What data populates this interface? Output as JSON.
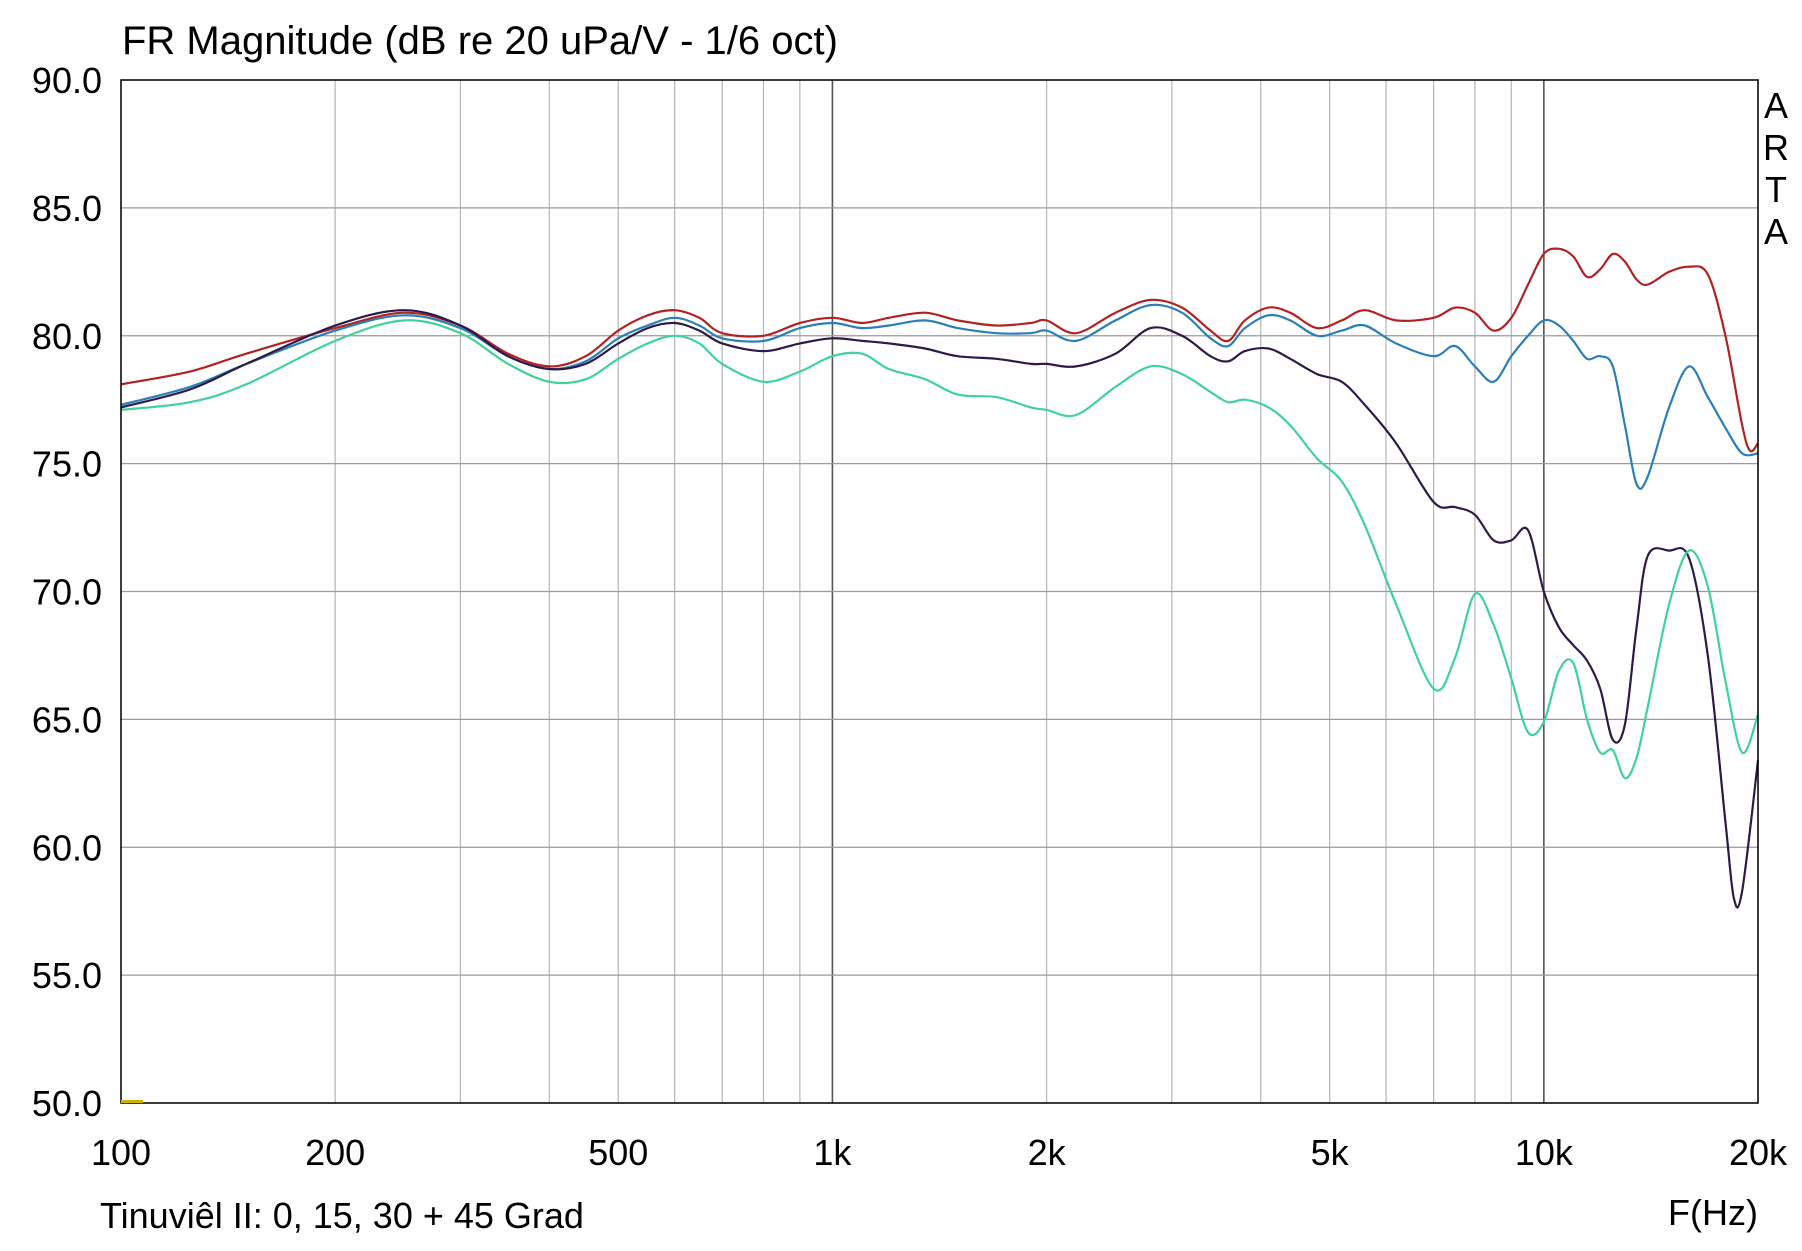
{
  "chart_data": {
    "type": "line",
    "title": "FR Magnitude (dB re 20 uPa/V - 1/6 oct)",
    "caption": "Tinuviêl II: 0, 15, 30 + 45 Grad",
    "xlabel": "F(Hz)",
    "watermark": "ARTA",
    "x_scale": "log",
    "xlim": [
      100,
      20000
    ],
    "ylim": [
      50,
      90
    ],
    "grid": true,
    "x_ticks": [
      {
        "value": 100,
        "label": "100"
      },
      {
        "value": 200,
        "label": "200"
      },
      {
        "value": 500,
        "label": "500"
      },
      {
        "value": 1000,
        "label": "1k"
      },
      {
        "value": 2000,
        "label": "2k"
      },
      {
        "value": 5000,
        "label": "5k"
      },
      {
        "value": 10000,
        "label": "10k"
      },
      {
        "value": 20000,
        "label": "20k"
      }
    ],
    "y_ticks": [
      {
        "value": 90,
        "label": "90.0"
      },
      {
        "value": 85,
        "label": "85.0"
      },
      {
        "value": 80,
        "label": "80.0"
      },
      {
        "value": 75,
        "label": "75.0"
      },
      {
        "value": 70,
        "label": "70.0"
      },
      {
        "value": 65,
        "label": "65.0"
      },
      {
        "value": 60,
        "label": "60.0"
      },
      {
        "value": 55,
        "label": "55.0"
      },
      {
        "value": 50,
        "label": "50.0"
      }
    ],
    "series": [
      {
        "color": "#b22222",
        "points": [
          [
            100,
            78.1
          ],
          [
            125,
            78.6
          ],
          [
            150,
            79.3
          ],
          [
            200,
            80.3
          ],
          [
            250,
            80.9
          ],
          [
            300,
            80.4
          ],
          [
            350,
            79.3
          ],
          [
            400,
            78.8
          ],
          [
            450,
            79.2
          ],
          [
            500,
            80.2
          ],
          [
            550,
            80.8
          ],
          [
            600,
            81.0
          ],
          [
            650,
            80.7
          ],
          [
            700,
            80.1
          ],
          [
            800,
            80.0
          ],
          [
            900,
            80.5
          ],
          [
            1000,
            80.7
          ],
          [
            1100,
            80.5
          ],
          [
            1200,
            80.7
          ],
          [
            1350,
            80.9
          ],
          [
            1500,
            80.6
          ],
          [
            1700,
            80.4
          ],
          [
            1900,
            80.5
          ],
          [
            2000,
            80.6
          ],
          [
            2200,
            80.1
          ],
          [
            2500,
            80.9
          ],
          [
            2800,
            81.4
          ],
          [
            3100,
            81.1
          ],
          [
            3400,
            80.2
          ],
          [
            3600,
            79.8
          ],
          [
            3800,
            80.6
          ],
          [
            4100,
            81.1
          ],
          [
            4400,
            80.9
          ],
          [
            4800,
            80.3
          ],
          [
            5200,
            80.6
          ],
          [
            5600,
            81.0
          ],
          [
            6200,
            80.6
          ],
          [
            7000,
            80.7
          ],
          [
            7500,
            81.1
          ],
          [
            8000,
            80.9
          ],
          [
            8500,
            80.2
          ],
          [
            9000,
            80.7
          ],
          [
            9500,
            82.0
          ],
          [
            10000,
            83.2
          ],
          [
            10500,
            83.4
          ],
          [
            11000,
            83.1
          ],
          [
            11500,
            82.3
          ],
          [
            12000,
            82.6
          ],
          [
            12500,
            83.2
          ],
          [
            13000,
            82.9
          ],
          [
            13500,
            82.2
          ],
          [
            14000,
            82.0
          ],
          [
            15000,
            82.5
          ],
          [
            16000,
            82.7
          ],
          [
            17000,
            82.4
          ],
          [
            18000,
            80.0
          ],
          [
            19000,
            76.5
          ],
          [
            19500,
            75.5
          ],
          [
            20000,
            75.8
          ]
        ]
      },
      {
        "color": "#2a7fb8",
        "points": [
          [
            100,
            77.3
          ],
          [
            125,
            78.0
          ],
          [
            150,
            78.9
          ],
          [
            200,
            80.2
          ],
          [
            250,
            80.8
          ],
          [
            300,
            80.3
          ],
          [
            350,
            79.2
          ],
          [
            400,
            78.7
          ],
          [
            450,
            79.0
          ],
          [
            500,
            79.9
          ],
          [
            550,
            80.4
          ],
          [
            600,
            80.7
          ],
          [
            650,
            80.4
          ],
          [
            700,
            79.9
          ],
          [
            800,
            79.8
          ],
          [
            900,
            80.3
          ],
          [
            1000,
            80.5
          ],
          [
            1100,
            80.3
          ],
          [
            1200,
            80.4
          ],
          [
            1350,
            80.6
          ],
          [
            1500,
            80.3
          ],
          [
            1700,
            80.1
          ],
          [
            1900,
            80.1
          ],
          [
            2000,
            80.2
          ],
          [
            2200,
            79.8
          ],
          [
            2500,
            80.6
          ],
          [
            2800,
            81.2
          ],
          [
            3100,
            80.9
          ],
          [
            3400,
            79.9
          ],
          [
            3600,
            79.6
          ],
          [
            3800,
            80.3
          ],
          [
            4100,
            80.8
          ],
          [
            4400,
            80.6
          ],
          [
            4800,
            80.0
          ],
          [
            5200,
            80.2
          ],
          [
            5600,
            80.4
          ],
          [
            6200,
            79.7
          ],
          [
            7000,
            79.2
          ],
          [
            7500,
            79.6
          ],
          [
            8000,
            78.8
          ],
          [
            8500,
            78.2
          ],
          [
            9000,
            79.2
          ],
          [
            9500,
            80.0
          ],
          [
            10000,
            80.6
          ],
          [
            10500,
            80.4
          ],
          [
            11000,
            79.8
          ],
          [
            11500,
            79.1
          ],
          [
            12000,
            79.2
          ],
          [
            12500,
            78.8
          ],
          [
            13000,
            76.5
          ],
          [
            13500,
            74.2
          ],
          [
            14000,
            74.5
          ],
          [
            15000,
            77.2
          ],
          [
            16000,
            78.8
          ],
          [
            17000,
            77.6
          ],
          [
            18000,
            76.4
          ],
          [
            19000,
            75.4
          ],
          [
            20000,
            75.4
          ]
        ]
      },
      {
        "color": "#2e1a47",
        "points": [
          [
            100,
            77.2
          ],
          [
            125,
            77.9
          ],
          [
            150,
            78.9
          ],
          [
            200,
            80.4
          ],
          [
            250,
            81.0
          ],
          [
            300,
            80.4
          ],
          [
            350,
            79.2
          ],
          [
            400,
            78.7
          ],
          [
            450,
            78.9
          ],
          [
            500,
            79.7
          ],
          [
            550,
            80.3
          ],
          [
            600,
            80.5
          ],
          [
            650,
            80.2
          ],
          [
            700,
            79.7
          ],
          [
            800,
            79.4
          ],
          [
            900,
            79.7
          ],
          [
            1000,
            79.9
          ],
          [
            1100,
            79.8
          ],
          [
            1200,
            79.7
          ],
          [
            1350,
            79.5
          ],
          [
            1500,
            79.2
          ],
          [
            1700,
            79.1
          ],
          [
            1900,
            78.9
          ],
          [
            2000,
            78.9
          ],
          [
            2200,
            78.8
          ],
          [
            2500,
            79.3
          ],
          [
            2800,
            80.3
          ],
          [
            3100,
            80.0
          ],
          [
            3400,
            79.2
          ],
          [
            3600,
            79.0
          ],
          [
            3800,
            79.4
          ],
          [
            4100,
            79.5
          ],
          [
            4400,
            79.1
          ],
          [
            4800,
            78.5
          ],
          [
            5200,
            78.2
          ],
          [
            5600,
            77.3
          ],
          [
            6200,
            75.8
          ],
          [
            7000,
            73.5
          ],
          [
            7500,
            73.3
          ],
          [
            8000,
            73.0
          ],
          [
            8500,
            72.0
          ],
          [
            9000,
            72.0
          ],
          [
            9500,
            72.4
          ],
          [
            10000,
            70.0
          ],
          [
            10500,
            68.6
          ],
          [
            11000,
            67.9
          ],
          [
            11500,
            67.3
          ],
          [
            12000,
            66.2
          ],
          [
            12500,
            64.2
          ],
          [
            13000,
            64.8
          ],
          [
            13500,
            68.6
          ],
          [
            14000,
            71.4
          ],
          [
            15000,
            71.6
          ],
          [
            16000,
            71.3
          ],
          [
            17000,
            67.5
          ],
          [
            18000,
            61.0
          ],
          [
            18500,
            58.0
          ],
          [
            19000,
            58.3
          ],
          [
            20000,
            63.4
          ]
        ]
      },
      {
        "color": "#3fd29a",
        "points": [
          [
            100,
            77.1
          ],
          [
            125,
            77.4
          ],
          [
            150,
            78.1
          ],
          [
            200,
            79.8
          ],
          [
            250,
            80.6
          ],
          [
            300,
            80.1
          ],
          [
            350,
            78.9
          ],
          [
            400,
            78.2
          ],
          [
            450,
            78.3
          ],
          [
            500,
            79.1
          ],
          [
            550,
            79.7
          ],
          [
            600,
            80.0
          ],
          [
            650,
            79.7
          ],
          [
            700,
            78.9
          ],
          [
            800,
            78.2
          ],
          [
            900,
            78.6
          ],
          [
            1000,
            79.2
          ],
          [
            1100,
            79.3
          ],
          [
            1200,
            78.7
          ],
          [
            1350,
            78.3
          ],
          [
            1500,
            77.7
          ],
          [
            1700,
            77.6
          ],
          [
            1900,
            77.2
          ],
          [
            2000,
            77.1
          ],
          [
            2200,
            76.9
          ],
          [
            2500,
            78.0
          ],
          [
            2800,
            78.8
          ],
          [
            3100,
            78.5
          ],
          [
            3400,
            77.8
          ],
          [
            3600,
            77.4
          ],
          [
            3800,
            77.5
          ],
          [
            4100,
            77.2
          ],
          [
            4400,
            76.5
          ],
          [
            4800,
            75.2
          ],
          [
            5200,
            74.3
          ],
          [
            5600,
            72.6
          ],
          [
            6200,
            69.5
          ],
          [
            7000,
            66.2
          ],
          [
            7500,
            67.4
          ],
          [
            8000,
            69.9
          ],
          [
            8500,
            68.7
          ],
          [
            9000,
            66.6
          ],
          [
            9500,
            64.5
          ],
          [
            10000,
            64.9
          ],
          [
            10500,
            66.9
          ],
          [
            11000,
            67.2
          ],
          [
            11500,
            65.0
          ],
          [
            12000,
            63.7
          ],
          [
            12500,
            63.8
          ],
          [
            13000,
            62.7
          ],
          [
            13500,
            63.5
          ],
          [
            14000,
            65.5
          ],
          [
            15000,
            69.5
          ],
          [
            16000,
            71.6
          ],
          [
            17000,
            70.2
          ],
          [
            18000,
            66.5
          ],
          [
            19000,
            63.7
          ],
          [
            20000,
            65.2
          ]
        ]
      }
    ]
  }
}
